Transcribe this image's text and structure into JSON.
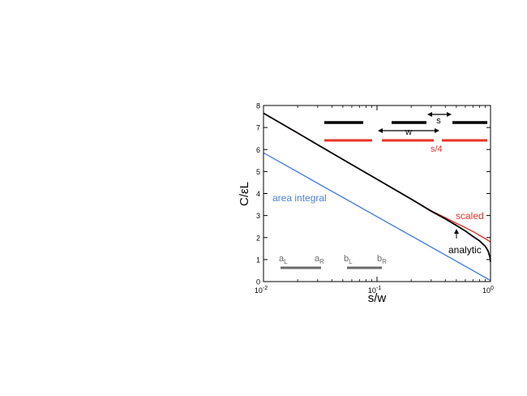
{
  "chart_data": {
    "type": "line",
    "xscale": "log",
    "xlim": [
      0.01,
      1
    ],
    "ylim": [
      0,
      8
    ],
    "xlabel": "s/w",
    "ylabel": "C/εL",
    "xticks": [
      {
        "value": 0.01,
        "base": "10",
        "exp": "-2"
      },
      {
        "value": 0.1,
        "base": "10",
        "exp": "-1"
      },
      {
        "value": 1,
        "base": "10",
        "exp": "0"
      }
    ],
    "yticks": [
      0,
      1,
      2,
      3,
      4,
      5,
      6,
      7,
      8
    ],
    "grid": false,
    "legend": "none",
    "series": [
      {
        "name": "analytic",
        "color": "#000000",
        "x": [
          0.01,
          0.02,
          0.05,
          0.1,
          0.2,
          0.3,
          0.4,
          0.5,
          0.6,
          0.7,
          0.8,
          0.9,
          0.95,
          0.99,
          1.0
        ],
        "y": [
          7.65,
          6.75,
          5.55,
          4.65,
          3.75,
          3.2,
          2.85,
          2.55,
          2.3,
          2.05,
          1.85,
          1.6,
          1.4,
          1.1,
          0.9
        ]
      },
      {
        "name": "scaled",
        "color": "#e8322a",
        "x": [
          0.01,
          0.02,
          0.05,
          0.1,
          0.2,
          0.3,
          0.4,
          0.5,
          0.6,
          0.7,
          0.8,
          0.9,
          1.0
        ],
        "y": [
          7.65,
          6.75,
          5.55,
          4.65,
          3.75,
          3.22,
          2.9,
          2.65,
          2.45,
          2.28,
          2.1,
          1.95,
          1.8
        ]
      },
      {
        "name": "area integral",
        "color": "#4a7fe0",
        "x": [
          0.01,
          1.0
        ],
        "y": [
          5.85,
          0.05
        ]
      }
    ],
    "annotations": {
      "scaled": "scaled",
      "analytic": "analytic",
      "area_integral": "area integral",
      "s": "s",
      "w": "w",
      "s4": "s/4",
      "aL": {
        "base": "a",
        "sub": "L"
      },
      "aR": {
        "base": "a",
        "sub": "R"
      },
      "bL": {
        "base": "b",
        "sub": "L"
      },
      "bR": {
        "base": "b",
        "sub": "R"
      }
    },
    "colors": {
      "black": "#000000",
      "red": "#e8322a",
      "blue": "#4a7fe0",
      "gray": "#6b6b6b"
    }
  }
}
